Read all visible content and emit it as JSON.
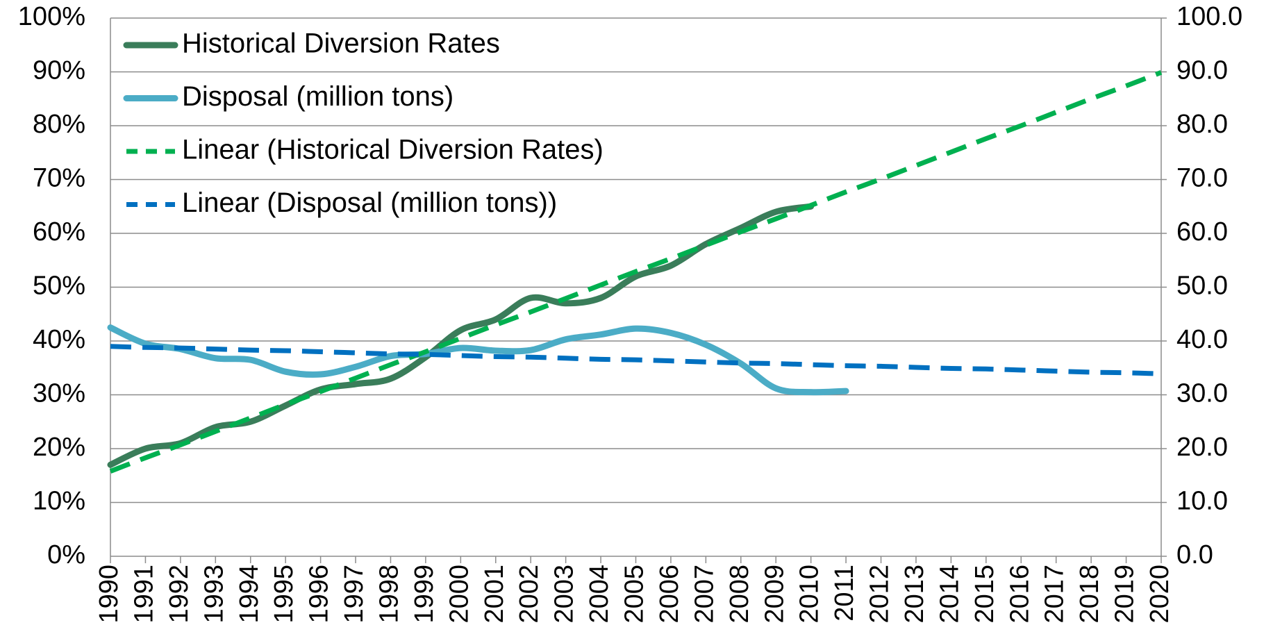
{
  "chart_data": {
    "type": "line",
    "categories": [
      "1990",
      "1991",
      "1992",
      "1993",
      "1994",
      "1995",
      "1996",
      "1997",
      "1998",
      "1999",
      "2000",
      "2001",
      "2002",
      "2003",
      "2004",
      "2005",
      "2006",
      "2007",
      "2008",
      "2009",
      "2010",
      "2011",
      "2012",
      "2013",
      "2014",
      "2015",
      "2016",
      "2017",
      "2018",
      "2019",
      "2020"
    ],
    "series": [
      {
        "name": "Historical Diversion Rates",
        "color": "#3a7d5a",
        "dash": false,
        "axis": "y",
        "values": [
          17,
          20,
          21,
          24,
          25,
          28,
          31,
          32,
          33,
          37,
          42,
          44,
          48,
          47,
          48,
          52,
          54,
          58,
          61,
          64,
          65,
          null,
          null,
          null,
          null,
          null,
          null,
          null,
          null,
          null,
          null
        ]
      },
      {
        "name": "Disposal (million tons)",
        "color": "#4bacc6",
        "dash": false,
        "axis": "y2",
        "values": [
          42.5,
          39.5,
          38.5,
          36.8,
          36.5,
          34.3,
          33.8,
          35.2,
          37.2,
          37.6,
          38.7,
          38.2,
          38.3,
          40.3,
          41.2,
          42.3,
          41.5,
          39.3,
          35.8,
          31.2,
          30.5,
          30.7,
          null,
          null,
          null,
          null,
          null,
          null,
          null,
          null,
          null
        ]
      },
      {
        "name": "Linear (Historical Diversion Rates)",
        "color": "#00b050",
        "dash": true,
        "axis": "y",
        "values": [
          15.8,
          18.3,
          20.7,
          23.2,
          25.7,
          28.2,
          30.6,
          33.1,
          35.6,
          38.0,
          40.5,
          43.0,
          45.4,
          47.9,
          50.4,
          52.9,
          55.3,
          57.8,
          60.3,
          62.7,
          65.2,
          67.7,
          70.1,
          72.6,
          75.1,
          77.6,
          80.0,
          82.5,
          85.0,
          87.4,
          89.9
        ]
      },
      {
        "name": "Linear (Disposal (million tons))",
        "color": "#0070c0",
        "dash": true,
        "axis": "y2",
        "values": [
          39.0,
          38.8,
          38.7,
          38.5,
          38.3,
          38.2,
          38.0,
          37.8,
          37.6,
          37.5,
          37.3,
          37.1,
          37.0,
          36.8,
          36.6,
          36.5,
          36.3,
          36.1,
          35.9,
          35.8,
          35.6,
          35.4,
          35.3,
          35.1,
          34.9,
          34.8,
          34.6,
          34.4,
          34.2,
          34.1,
          33.9
        ]
      }
    ],
    "ylim": [
      0,
      100
    ],
    "yticks": [
      {
        "value": 0,
        "label": "0%"
      },
      {
        "value": 10,
        "label": "10%"
      },
      {
        "value": 20,
        "label": "20%"
      },
      {
        "value": 30,
        "label": "30%"
      },
      {
        "value": 40,
        "label": "40%"
      },
      {
        "value": 50,
        "label": "50%"
      },
      {
        "value": 60,
        "label": "60%"
      },
      {
        "value": 70,
        "label": "70%"
      },
      {
        "value": 80,
        "label": "80%"
      },
      {
        "value": 90,
        "label": "90%"
      },
      {
        "value": 100,
        "label": "100%"
      }
    ],
    "y2lim": [
      0,
      100
    ],
    "y2ticks": [
      {
        "value": 0,
        "label": "0.0"
      },
      {
        "value": 10,
        "label": "10.0"
      },
      {
        "value": 20,
        "label": "20.0"
      },
      {
        "value": 30,
        "label": "30.0"
      },
      {
        "value": 40,
        "label": "40.0"
      },
      {
        "value": 50,
        "label": "50.0"
      },
      {
        "value": 60,
        "label": "60.0"
      },
      {
        "value": 70,
        "label": "70.0"
      },
      {
        "value": 80,
        "label": "80.0"
      },
      {
        "value": 90,
        "label": "90.0"
      },
      {
        "value": 100,
        "label": "100.0"
      }
    ],
    "grid": true,
    "legend": "top-left"
  }
}
